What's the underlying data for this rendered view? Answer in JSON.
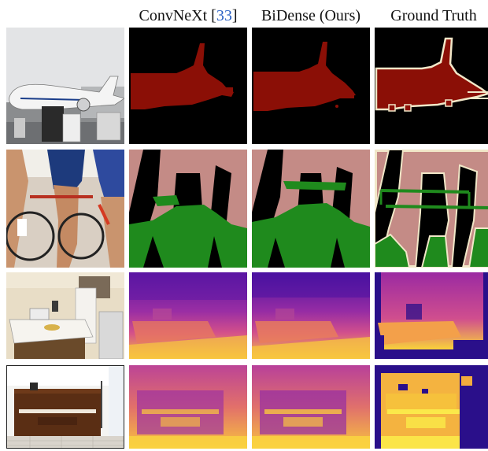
{
  "columns": [
    {
      "title": "",
      "cite": ""
    },
    {
      "title": "ConvNeXt [",
      "cite": "33",
      "suffix": "]"
    },
    {
      "title": "BiDense (Ours)",
      "cite": "",
      "suffix": ""
    },
    {
      "title": "Ground Truth",
      "cite": "",
      "suffix": ""
    }
  ],
  "rows": [
    "airplane-segmentation",
    "cyclists-segmentation",
    "kitchen-depth",
    "piano-depth"
  ],
  "colors": {
    "seg_background": "#000000",
    "seg_airplane": "#8b0f06",
    "seg_person": "#c48b86",
    "seg_bicycle": "#1f8a1d",
    "seg_boundary": "#f1e7c8",
    "depth_far": "#2a0f8a",
    "depth_mid": "#c23ea0",
    "depth_near": "#f6c93f"
  }
}
